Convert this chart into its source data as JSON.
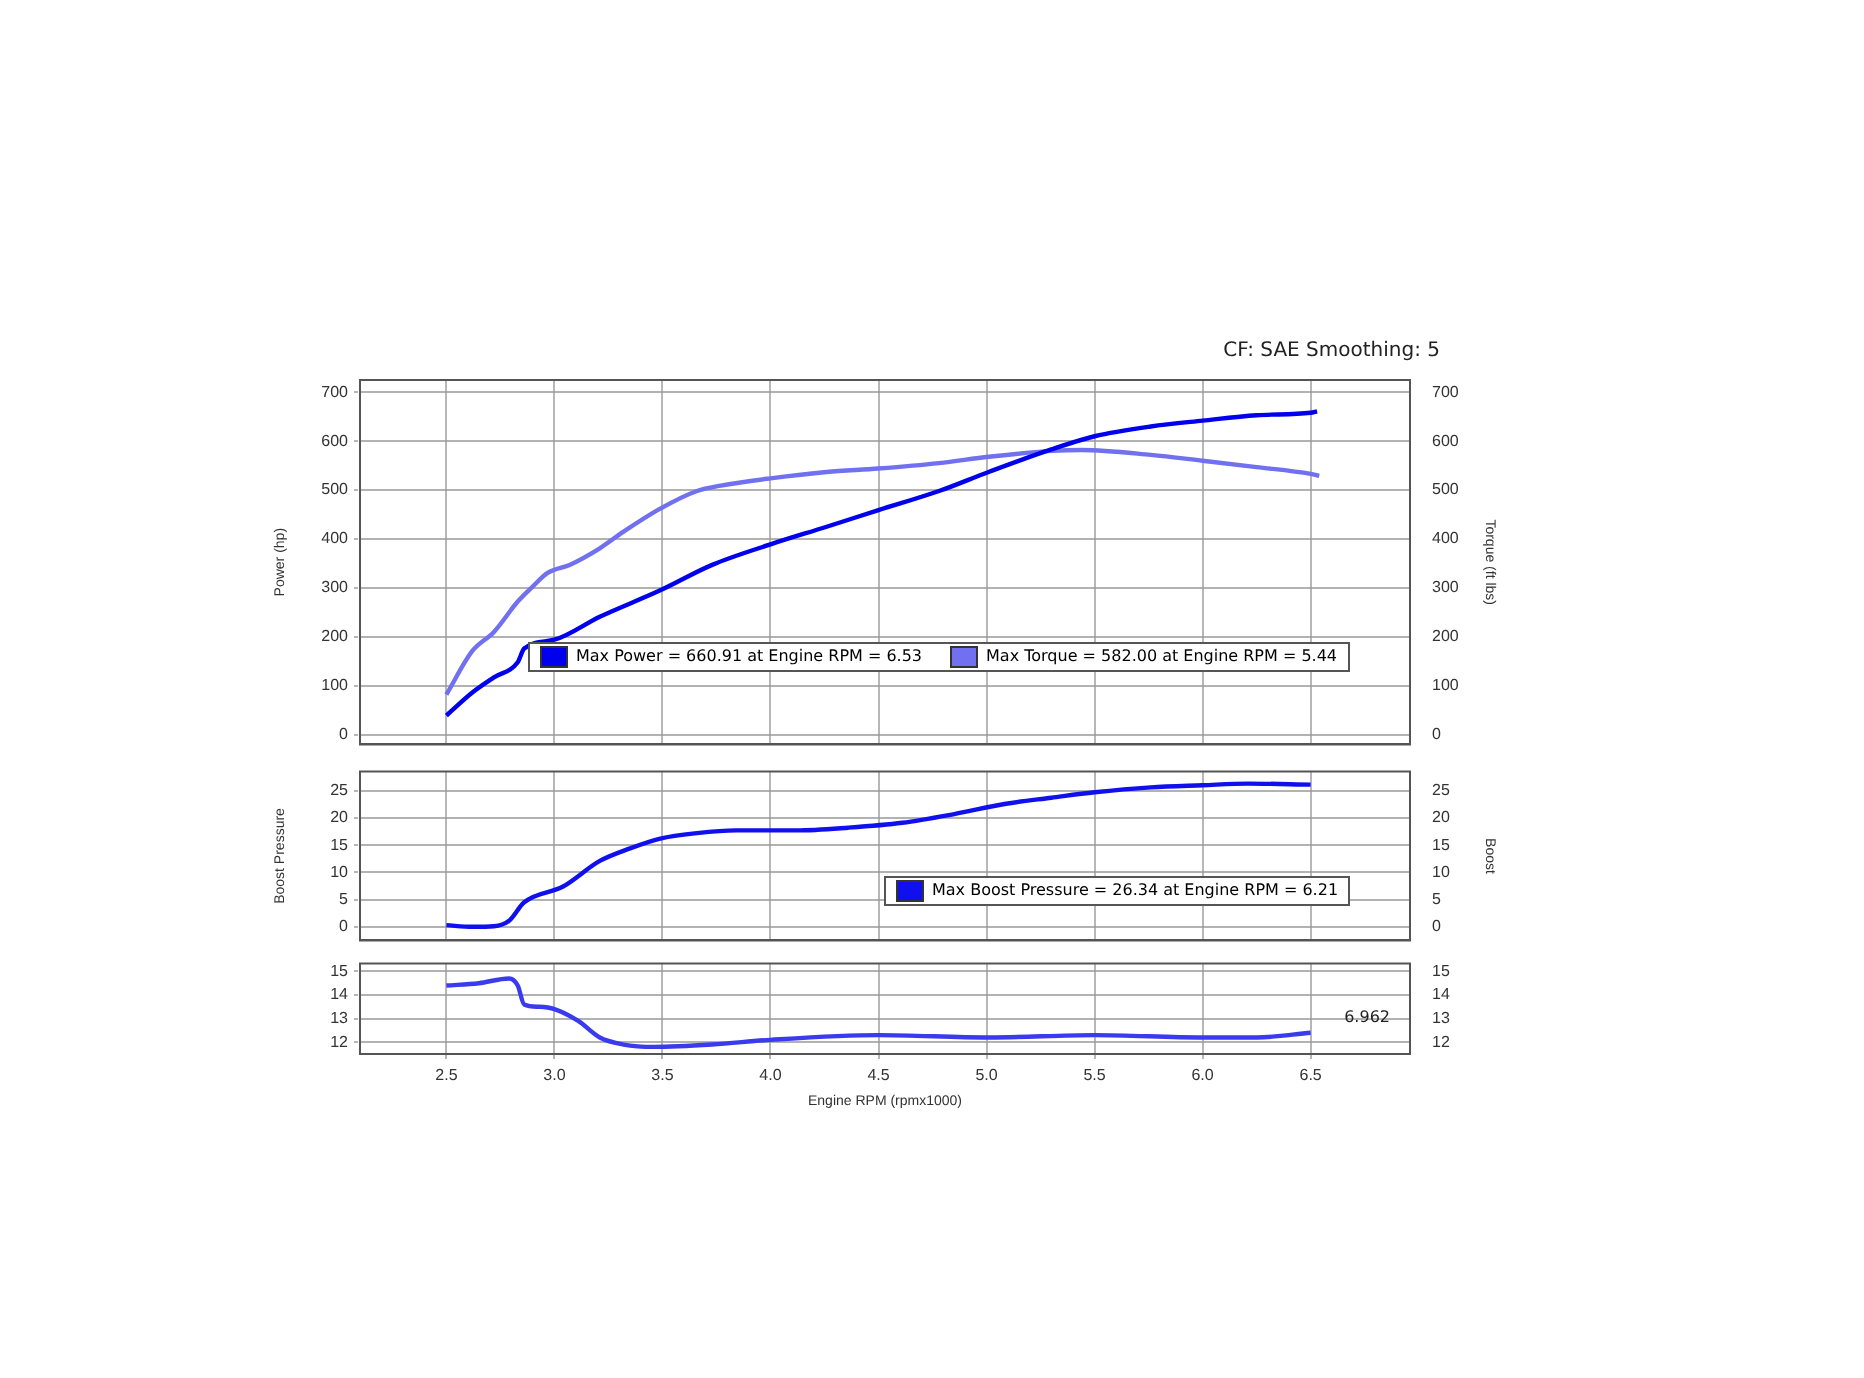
{
  "chart_data": [
    {
      "type": "line",
      "ylabel": "Power (hp)",
      "y2label": "Torque (ft lbs)",
      "annotations": [
        "CF: SAE Smoothing: 5"
      ],
      "xlim": [
        2.1,
        6.96
      ],
      "xticks": [
        {
          "value": 2.5,
          "label": null
        },
        {
          "value": 3,
          "label": null
        },
        {
          "value": 3.5,
          "label": null
        },
        {
          "value": 4,
          "label": null
        },
        {
          "value": 4.5,
          "label": null
        },
        {
          "value": 5,
          "label": null
        },
        {
          "value": 5.5,
          "label": null
        },
        {
          "value": 6,
          "label": null
        },
        {
          "value": 6.5,
          "label": null
        }
      ],
      "ylim": [
        -20,
        725
      ],
      "yticks": [
        0,
        100,
        200,
        300,
        400,
        500,
        600,
        700
      ],
      "y2lim": [
        -20,
        725
      ],
      "y2ticks": [
        0,
        100,
        200,
        300,
        400,
        500,
        600,
        700
      ],
      "tick_labels": "y",
      "grid": true,
      "legend": "bottom right",
      "marker": "none",
      "line_style": "solid",
      "series": [
        {
          "name": "Max Power = 660.91 at Engine RPM = 6.53",
          "color": "#0000ee",
          "x": [
            2.5,
            2.62,
            2.72,
            2.83,
            2.86,
            3.0,
            3.21,
            3.49,
            3.73,
            4.0,
            4.26,
            4.5,
            4.78,
            5.01,
            5.3,
            5.5,
            5.76,
            6.0,
            6.25,
            6.5,
            6.53
          ],
          "values": [
            39,
            86,
            117,
            148,
            176,
            194,
            241,
            295,
            347,
            389,
            425,
            459,
            498,
            537,
            583,
            610,
            630,
            642,
            653,
            658,
            661
          ]
        },
        {
          "name": "Max Torque = 582.00 at Engine RPM = 5.44",
          "color": "#7070f0",
          "x": [
            2.5,
            2.62,
            2.72,
            2.83,
            2.9,
            2.97,
            3.07,
            3.21,
            3.32,
            3.49,
            3.66,
            3.77,
            4.0,
            4.26,
            4.5,
            4.78,
            5.01,
            5.3,
            5.44,
            5.76,
            6.0,
            6.25,
            6.5,
            6.54
          ],
          "values": [
            82,
            171,
            210,
            272,
            303,
            331,
            347,
            381,
            415,
            462,
            498,
            509,
            524,
            537,
            544,
            555,
            568,
            580,
            582,
            572,
            560,
            547,
            533,
            529
          ]
        }
      ]
    },
    {
      "type": "line",
      "ylabel": "Boost Pressure",
      "y2label": "Boost",
      "xlim": [
        2.1,
        6.96
      ],
      "xticks": [
        {
          "value": 2.5,
          "label": null
        },
        {
          "value": 3,
          "label": null
        },
        {
          "value": 3.5,
          "label": null
        },
        {
          "value": 4,
          "label": null
        },
        {
          "value": 4.5,
          "label": null
        },
        {
          "value": 5,
          "label": null
        },
        {
          "value": 5.5,
          "label": null
        },
        {
          "value": 6,
          "label": null
        },
        {
          "value": 6.5,
          "label": null
        }
      ],
      "ylim": [
        -2.5,
        28.5
      ],
      "yticks": [
        0,
        5,
        10,
        15,
        20,
        25
      ],
      "y2lim": [
        -2.5,
        28.5
      ],
      "y2ticks": [
        0,
        5,
        10,
        15,
        20,
        25
      ],
      "tick_labels": "y",
      "grid": true,
      "legend": "bottom right",
      "marker": "none",
      "line_style": "solid",
      "series": [
        {
          "name": "Max Boost Pressure = 26.34 at Engine RPM = 6.21",
          "color": "#1010ee",
          "x": [
            2.5,
            2.62,
            2.72,
            2.79,
            2.86,
            3.04,
            3.21,
            3.35,
            3.49,
            3.66,
            3.84,
            4.12,
            4.36,
            4.61,
            4.85,
            5.09,
            5.3,
            5.5,
            5.76,
            6.0,
            6.21,
            6.5
          ],
          "values": [
            0.3,
            0,
            0.1,
            1.1,
            4.5,
            7.4,
            12.1,
            14.4,
            16.2,
            17.2,
            17.7,
            17.7,
            18.2,
            19.1,
            20.7,
            22.6,
            23.7,
            24.7,
            25.6,
            26,
            26.3,
            26.1
          ]
        }
      ]
    },
    {
      "type": "line",
      "xlabel": "Engine RPM (rpmx1000)",
      "annotations": [
        "6.962"
      ],
      "xlim": [
        2.1,
        6.96
      ],
      "xticks": [
        {
          "value": 2.5,
          "label": "2.5"
        },
        {
          "value": 3,
          "label": "3.0"
        },
        {
          "value": 3.5,
          "label": "3.5"
        },
        {
          "value": 4,
          "label": "4.0"
        },
        {
          "value": 4.5,
          "label": "4.5"
        },
        {
          "value": 5,
          "label": "5.0"
        },
        {
          "value": 5.5,
          "label": "5.5"
        },
        {
          "value": 6,
          "label": "6.0"
        },
        {
          "value": 6.5,
          "label": "6.5"
        }
      ],
      "ylim": [
        11.5,
        15.33
      ],
      "yticks": [
        12,
        13,
        14,
        15
      ],
      "y2lim": [
        11.5,
        15.33
      ],
      "y2ticks": [
        12,
        13,
        14,
        15
      ],
      "grid": true,
      "marker": "none",
      "line_style": "solid",
      "series": [
        {
          "color": "#3a3aee",
          "x": [
            2.5,
            2.65,
            2.79,
            2.83,
            2.86,
            2.93,
            3.0,
            3.11,
            3.21,
            3.32,
            3.46,
            3.73,
            4.0,
            4.5,
            5.01,
            5.5,
            6.0,
            6.25,
            6.5
          ],
          "values": [
            14.4,
            14.5,
            14.7,
            14.4,
            13.6,
            13.5,
            13.4,
            12.9,
            12.2,
            11.9,
            11.8,
            11.9,
            12.1,
            12.3,
            12.2,
            12.3,
            12.2,
            12.2,
            12.4
          ]
        }
      ]
    }
  ]
}
